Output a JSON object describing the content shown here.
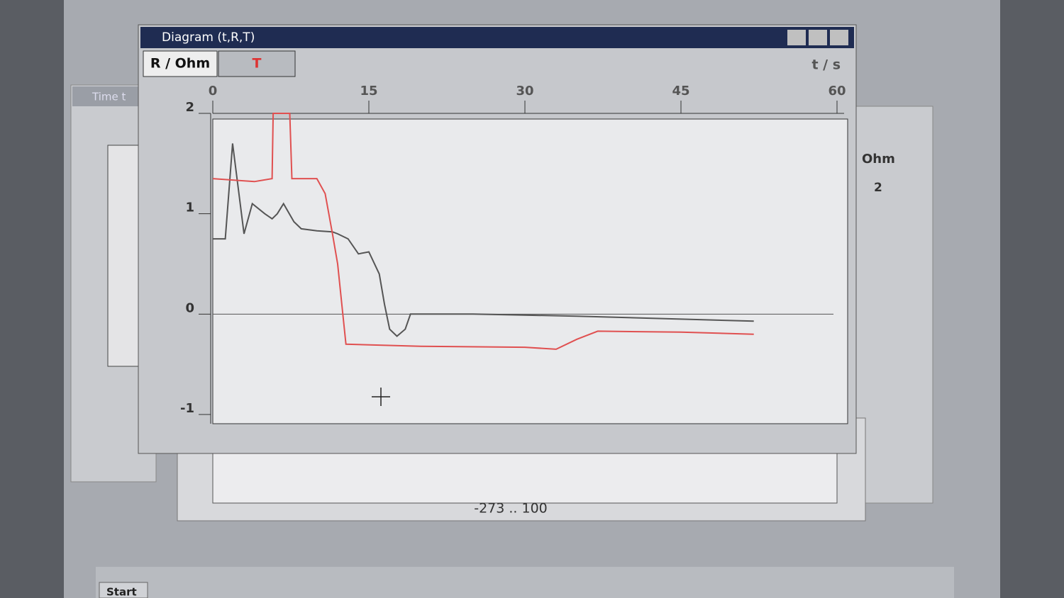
{
  "window": {
    "title": "Diagram (t,R,T)",
    "tabs": [
      "R / Ohm",
      "T"
    ],
    "x_unit": "t / s"
  },
  "background": {
    "side_title": "Time t",
    "range_label": "-273 .. 100",
    "right_label": "Ohm",
    "right_value": "2",
    "taskbar": "Start"
  },
  "chart_data": {
    "type": "line",
    "xlim": [
      0,
      60
    ],
    "xticks": [
      0,
      15,
      30,
      45,
      60
    ],
    "ylim": [
      -1,
      2
    ],
    "yticks": [
      -1,
      0,
      1,
      2
    ],
    "series": [
      {
        "name": "R / Ohm",
        "color": "#555555",
        "x": [
          0,
          1.2,
          1.9,
          3,
          3.8,
          5,
          5.7,
          6.2,
          6.8,
          7.8,
          8.5,
          10,
          11.5,
          12,
          13,
          14,
          15,
          16,
          16.5,
          17,
          17.7,
          18.5,
          19,
          25,
          35,
          45,
          52
        ],
        "values": [
          0.75,
          0.75,
          1.7,
          0.8,
          1.1,
          1.0,
          0.95,
          1.0,
          1.1,
          0.92,
          0.85,
          0.83,
          0.82,
          0.8,
          0.75,
          0.6,
          0.62,
          0.4,
          0.1,
          -0.15,
          -0.22,
          -0.15,
          0.0,
          0.0,
          -0.02,
          -0.05,
          -0.07
        ]
      },
      {
        "name": "T",
        "color": "#e05050",
        "x": [
          0,
          4,
          5.7,
          5.8,
          7.4,
          7.6,
          10,
          10.8,
          11.5,
          12,
          12.5,
          12.8,
          20,
          30,
          33,
          35,
          37,
          45,
          52
        ],
        "values": [
          1.35,
          1.32,
          1.35,
          2.0,
          2.0,
          1.35,
          1.35,
          1.2,
          0.8,
          0.5,
          0.0,
          -0.3,
          -0.32,
          -0.33,
          -0.35,
          -0.25,
          -0.17,
          -0.18,
          -0.2
        ]
      }
    ]
  }
}
